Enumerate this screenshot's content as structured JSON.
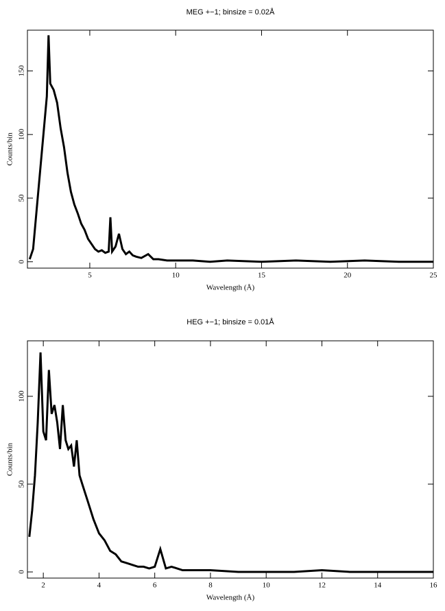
{
  "chart_data": [
    {
      "type": "line",
      "title": "MEG +−1; binsize = 0.02Å",
      "x_label": "Wavelength (Å)",
      "y_label": "Counts/bin",
      "color": "#000000",
      "x": [
        1.5,
        1.7,
        1.9,
        2.1,
        2.3,
        2.5,
        2.6,
        2.7,
        2.9,
        3.1,
        3.3,
        3.5,
        3.7,
        3.9,
        4.1,
        4.3,
        4.5,
        4.7,
        4.9,
        5.1,
        5.3,
        5.5,
        5.7,
        5.9,
        6.1,
        6.2,
        6.3,
        6.5,
        6.7,
        6.9,
        7.1,
        7.3,
        7.5,
        7.7,
        8,
        8.4,
        8.7,
        9,
        9.5,
        10,
        11,
        12,
        13,
        15,
        17,
        19,
        21,
        23,
        25
      ],
      "values": [
        2,
        10,
        40,
        70,
        100,
        130,
        178,
        140,
        135,
        125,
        105,
        90,
        70,
        55,
        45,
        38,
        30,
        25,
        18,
        14,
        10,
        8,
        9,
        7,
        8,
        35,
        8,
        12,
        22,
        10,
        6,
        8,
        5,
        4,
        3,
        6,
        2,
        2,
        1,
        1,
        1,
        0,
        1,
        0,
        1,
        0,
        1,
        0,
        0
      ],
      "xlim": [
        1.37,
        25
      ],
      "ylim": [
        -5,
        182
      ],
      "xticks": [
        5,
        10,
        15,
        20,
        25
      ],
      "yticks": [
        0,
        50,
        100,
        150
      ]
    },
    {
      "type": "line",
      "title": "HEG +−1; binsize = 0.01Å",
      "x_label": "Wavelength (Å)",
      "y_label": "Counts/bin",
      "color": "#000000",
      "x": [
        1.5,
        1.6,
        1.7,
        1.8,
        1.9,
        2.0,
        2.1,
        2.2,
        2.3,
        2.4,
        2.5,
        2.6,
        2.7,
        2.8,
        2.9,
        3.0,
        3.1,
        3.2,
        3.3,
        3.4,
        3.5,
        3.6,
        3.8,
        4.0,
        4.2,
        4.4,
        4.6,
        4.8,
        5.0,
        5.2,
        5.4,
        5.6,
        5.8,
        6.0,
        6.2,
        6.4,
        6.6,
        6.8,
        7.0,
        7.5,
        8,
        9,
        10,
        11,
        12,
        13,
        14,
        15,
        16
      ],
      "values": [
        20,
        35,
        55,
        85,
        125,
        80,
        75,
        115,
        90,
        95,
        85,
        70,
        95,
        75,
        70,
        72,
        60,
        75,
        55,
        50,
        45,
        40,
        30,
        22,
        18,
        12,
        10,
        6,
        5,
        4,
        3,
        3,
        2,
        3,
        13,
        2,
        3,
        2,
        1,
        1,
        1,
        0,
        0,
        0,
        1,
        0,
        0,
        0,
        0
      ],
      "xlim": [
        1.43,
        16
      ],
      "ylim": [
        -3.5,
        131.6
      ],
      "xticks": [
        2,
        4,
        6,
        8,
        10,
        12,
        14,
        16
      ],
      "yticks": [
        0,
        50,
        100
      ]
    }
  ]
}
